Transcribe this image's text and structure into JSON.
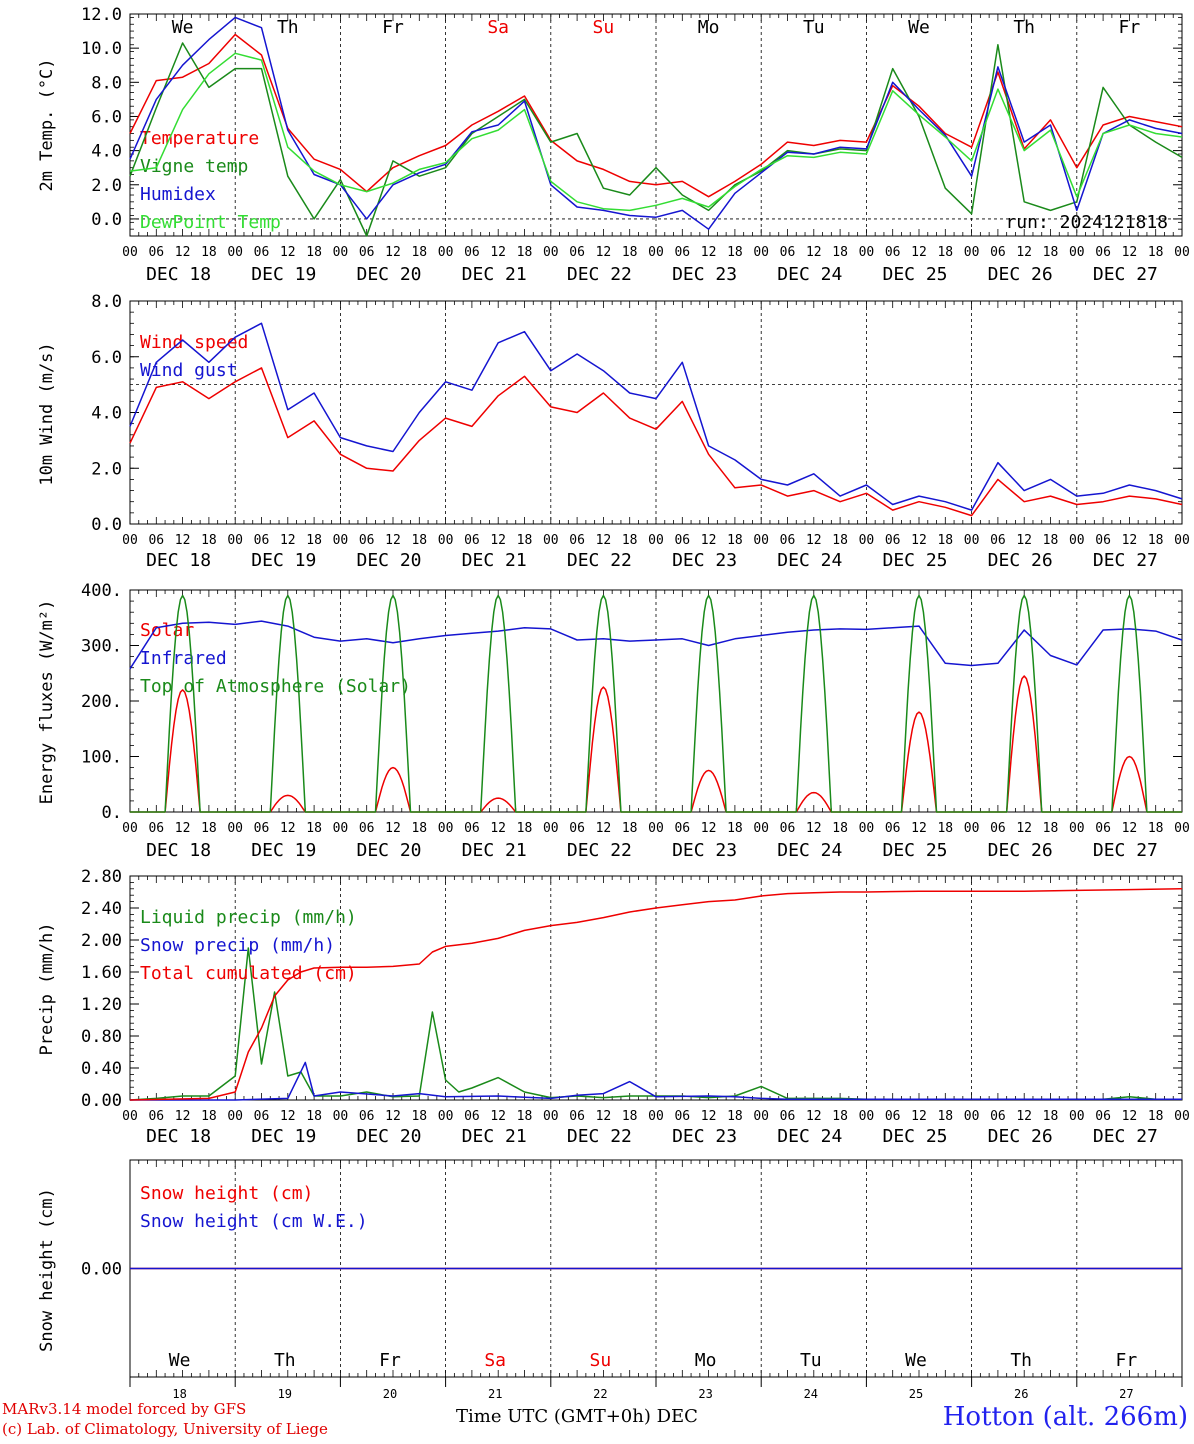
{
  "colors": {
    "red": "#ee0000",
    "green": "#1a8a1a",
    "blue": "#1515d0",
    "light_green": "#33dd33",
    "black": "#000000"
  },
  "footer": {
    "credit_line1": "MARv3.14 model forced by GFS",
    "credit_line2": "(c) Lab. of Climatology, University of Liege",
    "station": "Hotton (alt. 266m)",
    "x_title": "Time UTC (GMT+0h) DEC"
  },
  "days": {
    "weekday_labels": [
      "We",
      "Th",
      "Fr",
      "Sa",
      "Su",
      "Mo",
      "Tu",
      "We",
      "Th",
      "Fr"
    ],
    "weekend_flags": [
      false,
      false,
      false,
      true,
      true,
      false,
      false,
      false,
      false,
      false
    ],
    "date_labels": [
      "DEC 18",
      "DEC 19",
      "DEC 20",
      "DEC 21",
      "DEC 22",
      "DEC 23",
      "DEC 24",
      "DEC 25",
      "DEC 26",
      "DEC 27"
    ],
    "day_numbers": [
      "18",
      "19",
      "20",
      "21",
      "22",
      "23",
      "24",
      "25",
      "26",
      "27"
    ],
    "hour_labels": [
      "00",
      "06",
      "12",
      "18"
    ],
    "final_hour_label": "00"
  },
  "chart_data": [
    {
      "type": "line",
      "ylabel": "2m Temp. (°C)",
      "ylim": [
        -1,
        12
      ],
      "ytick_labels": [
        "12.0",
        "10.0",
        "8.0",
        "6.0",
        "4.0",
        "2.0",
        "0.0"
      ],
      "ytick_values": [
        12,
        10,
        8,
        6,
        4,
        2,
        0
      ],
      "reference_line": 0,
      "annotation": "run: 2024121818",
      "x_unit": "hours since DEC 18 00 UTC",
      "series": [
        {
          "name": "Temperature",
          "color_key": "red",
          "x": [
            0,
            6,
            12,
            18,
            24,
            30,
            36,
            42,
            48,
            54,
            60,
            66,
            72,
            78,
            84,
            90,
            96,
            102,
            108,
            114,
            120,
            126,
            132,
            138,
            144,
            150,
            156,
            162,
            168,
            174,
            180,
            186,
            192,
            198,
            204,
            210,
            216,
            222,
            228,
            234,
            240
          ],
          "y": [
            5.0,
            8.1,
            8.3,
            9.1,
            10.8,
            9.6,
            5.3,
            3.5,
            2.9,
            1.6,
            3.0,
            3.7,
            4.3,
            5.5,
            6.3,
            7.2,
            4.6,
            3.4,
            2.9,
            2.2,
            2.0,
            2.2,
            1.3,
            2.2,
            3.2,
            4.5,
            4.3,
            4.6,
            4.5,
            7.8,
            6.6,
            5.0,
            4.2,
            8.6,
            4.1,
            5.8,
            3.0,
            5.5,
            6.0,
            5.7,
            5.4
          ]
        },
        {
          "name": "Vigne temp",
          "color_key": "green",
          "x": [
            0,
            6,
            12,
            18,
            24,
            30,
            36,
            42,
            48,
            54,
            60,
            66,
            72,
            78,
            84,
            90,
            96,
            102,
            108,
            114,
            120,
            126,
            132,
            138,
            144,
            150,
            156,
            162,
            168,
            174,
            180,
            186,
            192,
            198,
            204,
            210,
            216,
            222,
            228,
            234,
            240
          ],
          "y": [
            2.5,
            6.5,
            10.3,
            7.7,
            8.8,
            8.8,
            2.5,
            0.0,
            2.3,
            -1.0,
            3.4,
            2.5,
            3.0,
            5.0,
            6.0,
            7.0,
            4.5,
            5.0,
            1.8,
            1.4,
            3.0,
            1.4,
            0.5,
            2.0,
            2.8,
            4.0,
            3.8,
            4.1,
            4.0,
            8.8,
            6.0,
            1.8,
            0.3,
            10.2,
            1.0,
            0.5,
            1.0,
            7.7,
            5.5,
            4.5,
            3.6
          ]
        },
        {
          "name": "Humidex",
          "color_key": "blue",
          "x": [
            0,
            6,
            12,
            18,
            24,
            30,
            36,
            42,
            48,
            54,
            60,
            66,
            72,
            78,
            84,
            90,
            96,
            102,
            108,
            114,
            120,
            126,
            132,
            138,
            144,
            150,
            156,
            162,
            168,
            174,
            180,
            186,
            192,
            198,
            204,
            210,
            216,
            222,
            228,
            234,
            240
          ],
          "y": [
            3.5,
            7.0,
            9.0,
            10.5,
            11.8,
            11.2,
            5.2,
            2.6,
            2.0,
            0.0,
            2.0,
            2.7,
            3.2,
            5.1,
            5.5,
            6.9,
            2.0,
            0.7,
            0.5,
            0.2,
            0.1,
            0.5,
            -0.6,
            1.5,
            2.7,
            3.9,
            3.8,
            4.2,
            4.1,
            8.0,
            6.4,
            4.9,
            2.5,
            8.9,
            4.5,
            5.5,
            0.5,
            5.0,
            5.8,
            5.3,
            5.0
          ]
        },
        {
          "name": "DewPoint Temp",
          "color_key": "light_green",
          "x": [
            0,
            6,
            12,
            18,
            24,
            30,
            36,
            42,
            48,
            54,
            60,
            66,
            72,
            78,
            84,
            90,
            96,
            102,
            108,
            114,
            120,
            126,
            132,
            138,
            144,
            150,
            156,
            162,
            168,
            174,
            180,
            186,
            192,
            198,
            204,
            210,
            216,
            222,
            228,
            234,
            240
          ],
          "y": [
            2.8,
            3.0,
            6.4,
            8.5,
            9.7,
            9.3,
            4.2,
            2.8,
            2.0,
            1.6,
            2.1,
            2.9,
            3.3,
            4.7,
            5.2,
            6.4,
            2.2,
            1.0,
            0.6,
            0.5,
            0.8,
            1.2,
            0.7,
            1.9,
            2.9,
            3.7,
            3.6,
            3.9,
            3.8,
            7.5,
            6.1,
            4.8,
            3.4,
            7.6,
            4.0,
            5.2,
            1.3,
            5.0,
            5.5,
            5.0,
            4.8
          ]
        }
      ]
    },
    {
      "type": "line",
      "ylabel": "10m Wind (m/s)",
      "ylim": [
        0,
        8
      ],
      "ytick_labels": [
        "8.0",
        "6.0",
        "4.0",
        "2.0",
        "0.0"
      ],
      "ytick_values": [
        8,
        6,
        4,
        2,
        0
      ],
      "reference_line": 5,
      "x_unit": "hours since DEC 18 00 UTC",
      "series": [
        {
          "name": "Wind speed",
          "color_key": "red",
          "x": [
            0,
            6,
            12,
            18,
            24,
            30,
            36,
            42,
            48,
            54,
            60,
            66,
            72,
            78,
            84,
            90,
            96,
            102,
            108,
            114,
            120,
            126,
            132,
            138,
            144,
            150,
            156,
            162,
            168,
            174,
            180,
            186,
            192,
            198,
            204,
            210,
            216,
            222,
            228,
            234,
            240
          ],
          "y": [
            2.9,
            4.9,
            5.1,
            4.5,
            5.1,
            5.6,
            3.1,
            3.7,
            2.5,
            2.0,
            1.9,
            3.0,
            3.8,
            3.5,
            4.6,
            5.3,
            4.2,
            4.0,
            4.7,
            3.8,
            3.4,
            4.4,
            2.5,
            1.3,
            1.4,
            1.0,
            1.2,
            0.8,
            1.1,
            0.5,
            0.8,
            0.6,
            0.3,
            1.6,
            0.8,
            1.0,
            0.7,
            0.8,
            1.0,
            0.9,
            0.7
          ]
        },
        {
          "name": "Wind gust",
          "color_key": "blue",
          "x": [
            0,
            6,
            12,
            18,
            24,
            30,
            36,
            42,
            48,
            54,
            60,
            66,
            72,
            78,
            84,
            90,
            96,
            102,
            108,
            114,
            120,
            126,
            132,
            138,
            144,
            150,
            156,
            162,
            168,
            174,
            180,
            186,
            192,
            198,
            204,
            210,
            216,
            222,
            228,
            234,
            240
          ],
          "y": [
            3.5,
            5.8,
            6.6,
            5.8,
            6.7,
            7.2,
            4.1,
            4.7,
            3.1,
            2.8,
            2.6,
            4.0,
            5.1,
            4.8,
            6.5,
            6.9,
            5.5,
            6.1,
            5.5,
            4.7,
            4.5,
            5.8,
            2.8,
            2.3,
            1.6,
            1.4,
            1.8,
            1.0,
            1.4,
            0.7,
            1.0,
            0.8,
            0.5,
            2.2,
            1.2,
            1.6,
            1.0,
            1.1,
            1.4,
            1.2,
            0.9
          ]
        }
      ]
    },
    {
      "type": "line",
      "ylabel": "Energy fluxes (W/m²)",
      "ylim": [
        0,
        400
      ],
      "ytick_labels": [
        "400.",
        "300.",
        "200.",
        "100.",
        "0."
      ],
      "ytick_values": [
        400,
        300,
        200,
        100,
        0
      ],
      "x_unit": "hours since DEC 18 00 UTC",
      "daylight_hours": [
        8,
        16
      ],
      "series": [
        {
          "name": "Solar",
          "color_key": "red",
          "daily_peak": [
            220,
            30,
            80,
            25,
            225,
            75,
            35,
            180,
            245,
            100
          ]
        },
        {
          "name": "Infrared",
          "color_key": "blue",
          "x": [
            0,
            6,
            12,
            18,
            24,
            30,
            36,
            42,
            48,
            54,
            60,
            66,
            72,
            78,
            84,
            90,
            96,
            102,
            108,
            114,
            120,
            126,
            132,
            138,
            144,
            150,
            156,
            162,
            168,
            174,
            180,
            186,
            192,
            198,
            204,
            210,
            216,
            222,
            228,
            234,
            240
          ],
          "y": [
            258,
            332,
            340,
            342,
            338,
            344,
            335,
            315,
            308,
            312,
            305,
            312,
            318,
            322,
            326,
            332,
            330,
            310,
            312,
            308,
            310,
            312,
            300,
            312,
            318,
            324,
            328,
            330,
            329,
            332,
            335,
            268,
            264,
            268,
            328,
            282,
            265,
            328,
            330,
            326,
            310
          ]
        },
        {
          "name": "Top of Atmosphere (Solar)",
          "color_key": "green",
          "daily_peak": [
            390,
            390,
            390,
            390,
            390,
            390,
            390,
            390,
            390,
            390
          ]
        }
      ]
    },
    {
      "type": "line",
      "ylabel": "Precip (mm/h)",
      "ylim": [
        0,
        2.8
      ],
      "ytick_labels": [
        "2.80",
        "2.40",
        "2.00",
        "1.60",
        "1.20",
        "0.80",
        "0.40",
        "0.00"
      ],
      "ytick_values": [
        2.8,
        2.4,
        2.0,
        1.6,
        1.2,
        0.8,
        0.4,
        0
      ],
      "x_unit": "hours since DEC 18 00 UTC",
      "series": [
        {
          "name": "Liquid precip (mm/h)",
          "color_key": "green",
          "x": [
            0,
            6,
            12,
            18,
            24,
            27,
            30,
            33,
            36,
            39,
            42,
            48,
            54,
            60,
            66,
            69,
            72,
            75,
            78,
            84,
            90,
            96,
            102,
            108,
            114,
            120,
            126,
            132,
            138,
            144,
            150,
            156,
            162,
            168,
            174,
            180,
            186,
            192,
            198,
            204,
            210,
            216,
            222,
            228,
            234,
            240
          ],
          "y": [
            0,
            0.02,
            0.05,
            0.05,
            0.3,
            1.9,
            0.45,
            1.35,
            0.3,
            0.35,
            0.05,
            0.05,
            0.1,
            0.04,
            0.05,
            1.1,
            0.25,
            0.1,
            0.15,
            0.28,
            0.1,
            0.03,
            0.05,
            0.03,
            0.05,
            0.05,
            0.05,
            0.03,
            0.05,
            0.17,
            0.02,
            0.02,
            0.02,
            0.01,
            0.01,
            0.01,
            0.01,
            0.01,
            0.01,
            0.01,
            0.01,
            0.01,
            0.01,
            0.04,
            0.01,
            0.01
          ]
        },
        {
          "name": "Snow precip (mm/h)",
          "color_key": "blue",
          "x": [
            0,
            24,
            36,
            40,
            42,
            48,
            60,
            66,
            72,
            84,
            96,
            102,
            108,
            114,
            120,
            132,
            138,
            144,
            150,
            156,
            168,
            180,
            192,
            204,
            216,
            228,
            240
          ],
          "y": [
            0,
            0,
            0.02,
            0.47,
            0.05,
            0.1,
            0.05,
            0.08,
            0.04,
            0.05,
            0.02,
            0.06,
            0.08,
            0.23,
            0.04,
            0.05,
            0.04,
            0.02,
            0.01,
            0.01,
            0.01,
            0.01,
            0.01,
            0.01,
            0.01,
            0.01,
            0.01
          ]
        },
        {
          "name": "Total cumulated (cm)",
          "color_key": "red",
          "x": [
            0,
            18,
            24,
            27,
            30,
            33,
            36,
            39,
            42,
            48,
            54,
            60,
            66,
            69,
            72,
            78,
            84,
            90,
            96,
            102,
            108,
            114,
            120,
            126,
            132,
            138,
            144,
            150,
            156,
            162,
            168,
            180,
            192,
            204,
            216,
            228,
            240
          ],
          "y": [
            0,
            0.02,
            0.1,
            0.6,
            0.9,
            1.3,
            1.5,
            1.6,
            1.65,
            1.66,
            1.66,
            1.67,
            1.7,
            1.85,
            1.92,
            1.96,
            2.02,
            2.12,
            2.18,
            2.22,
            2.28,
            2.35,
            2.4,
            2.44,
            2.48,
            2.5,
            2.55,
            2.58,
            2.59,
            2.6,
            2.6,
            2.61,
            2.61,
            2.61,
            2.62,
            2.63,
            2.64
          ]
        }
      ]
    },
    {
      "type": "line",
      "ylabel": "Snow height (cm)",
      "ylim": [
        -1,
        1
      ],
      "ytick_labels": [
        "0.00"
      ],
      "ytick_values": [
        0
      ],
      "x_unit": "hours since DEC 18 00 UTC",
      "series": [
        {
          "name": "Snow height (cm)",
          "color_key": "red",
          "x": [
            0,
            240
          ],
          "y": [
            0,
            0
          ]
        },
        {
          "name": "Snow height (cm W.E.)",
          "color_key": "blue",
          "x": [
            0,
            240
          ],
          "y": [
            0,
            0
          ]
        }
      ]
    }
  ]
}
